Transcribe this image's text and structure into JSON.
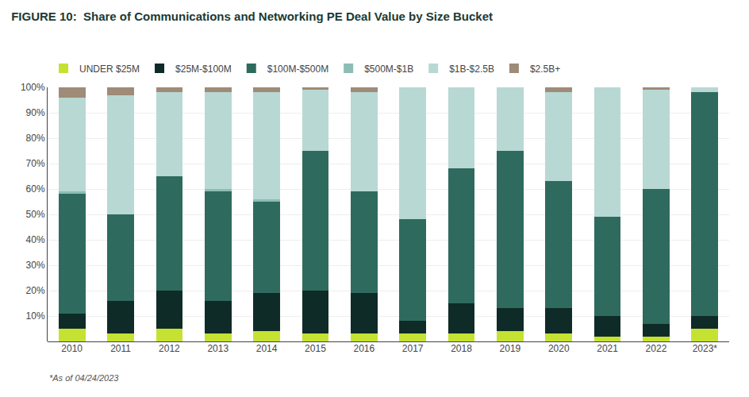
{
  "chart_data": {
    "type": "bar",
    "stacked": true,
    "title": "FIGURE 10:  Share of Communications and Networking PE Deal Value by Size Bucket",
    "categories": [
      "2010",
      "2011",
      "2012",
      "2013",
      "2014",
      "2015",
      "2016",
      "2017",
      "2018",
      "2019",
      "2020",
      "2021",
      "2022",
      "2023*"
    ],
    "series": [
      {
        "name": "UNDER $25M",
        "color": "#c5e232",
        "values": [
          0.05,
          0.03,
          0.05,
          0.03,
          0.04,
          0.03,
          0.03,
          0.03,
          0.03,
          0.04,
          0.03,
          0.02,
          0.02,
          0.05
        ]
      },
      {
        "name": "$25M-$100M",
        "color": "#0f2b28",
        "values": [
          0.06,
          0.13,
          0.15,
          0.13,
          0.15,
          0.17,
          0.16,
          0.05,
          0.12,
          0.09,
          0.1,
          0.08,
          0.05,
          0.05
        ]
      },
      {
        "name": "$100M-$500M",
        "color": "#2e6b5e",
        "values": [
          0.47,
          0.34,
          0.45,
          0.43,
          0.36,
          0.55,
          0.4,
          0.4,
          0.53,
          0.62,
          0.5,
          0.39,
          0.53,
          0.88
        ]
      },
      {
        "name": "$500M-$1B",
        "color": "#8dbdb5",
        "values": [
          0.01,
          0.0,
          0.0,
          0.01,
          0.01,
          0.0,
          0.0,
          0.0,
          0.0,
          0.0,
          0.0,
          0.0,
          0.0,
          0.0
        ]
      },
      {
        "name": "$1B-$2.5B",
        "color": "#b8d8d4",
        "values": [
          0.37,
          0.47,
          0.33,
          0.38,
          0.42,
          0.24,
          0.39,
          0.52,
          0.32,
          0.25,
          0.35,
          0.51,
          0.39,
          0.02
        ]
      },
      {
        "name": "$2.5B+",
        "color": "#9e8b78",
        "values": [
          0.04,
          0.03,
          0.02,
          0.02,
          0.02,
          0.01,
          0.02,
          0.0,
          0.0,
          0.0,
          0.02,
          0.0,
          0.01,
          0.0
        ]
      }
    ],
    "ylim": [
      0,
      1.0
    ],
    "yticks": [
      {
        "value": 0.1,
        "label": "10%"
      },
      {
        "value": 0.2,
        "label": "20%"
      },
      {
        "value": 0.3,
        "label": "30%"
      },
      {
        "value": 0.4,
        "label": "40%"
      },
      {
        "value": 0.5,
        "label": "50%"
      },
      {
        "value": 0.6,
        "label": "60%"
      },
      {
        "value": 0.7,
        "label": "70%"
      },
      {
        "value": 0.8,
        "label": "80%"
      },
      {
        "value": 0.9,
        "label": "90%"
      },
      {
        "value": 1.0,
        "label": "100%"
      }
    ],
    "grid": true,
    "legend": "top",
    "annotations": [
      "*As of 04/24/2023"
    ]
  }
}
